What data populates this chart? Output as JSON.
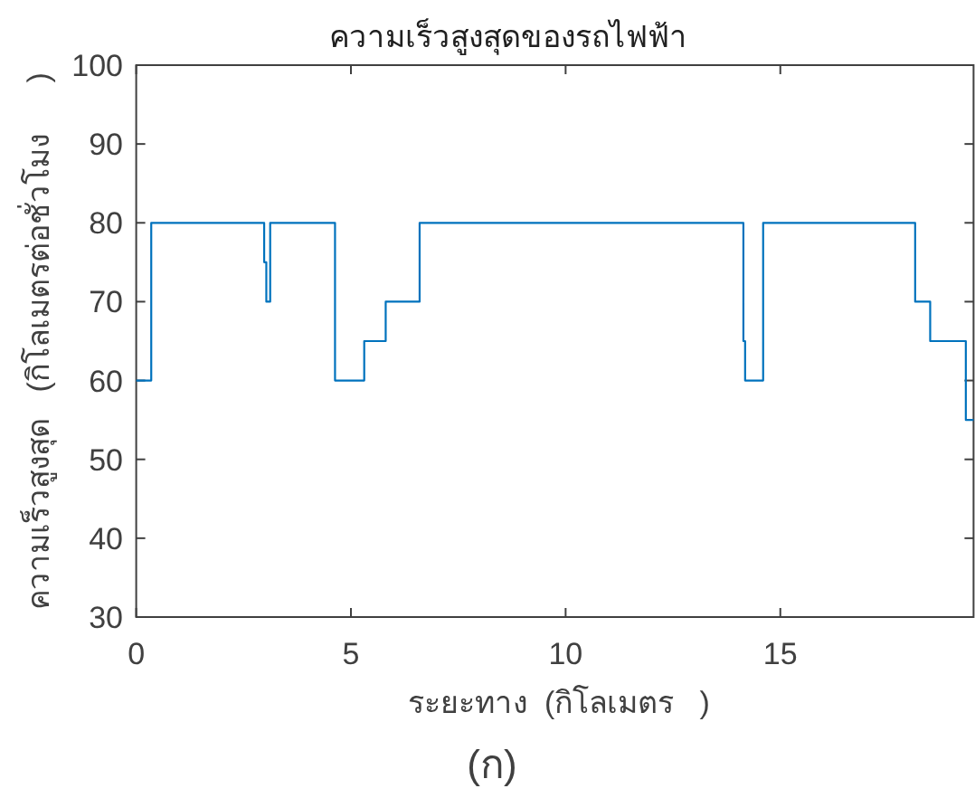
{
  "chart_data": {
    "type": "step",
    "title": "ความเร็วสูงสุดของรถไฟฟ้า",
    "xlabel": "ระยะทาง  (กิโลเมตร   )",
    "ylabel": "ความเร็วสูงสุด   (กิโลเมตรต่อชั่วโมง      )",
    "annotations": [
      "(ก)"
    ],
    "x": [
      0,
      0.35,
      2.98,
      3.03,
      3.12,
      4.63,
      5.31,
      5.81,
      6.6,
      14.14,
      14.18,
      14.6,
      18.14,
      18.49,
      19.32,
      19.5
    ],
    "series": [
      {
        "color": "#0072bd",
        "values": [
          60,
          80,
          75,
          70,
          80,
          60,
          65,
          70,
          80,
          65,
          60,
          80,
          70,
          65,
          55,
          55
        ]
      }
    ],
    "xlim": [
      0,
      19.5
    ],
    "ylim": [
      30,
      100
    ],
    "xticks": [
      0,
      5,
      10,
      15
    ],
    "yticks": [
      30,
      40,
      50,
      60,
      70,
      80,
      90,
      100
    ]
  }
}
